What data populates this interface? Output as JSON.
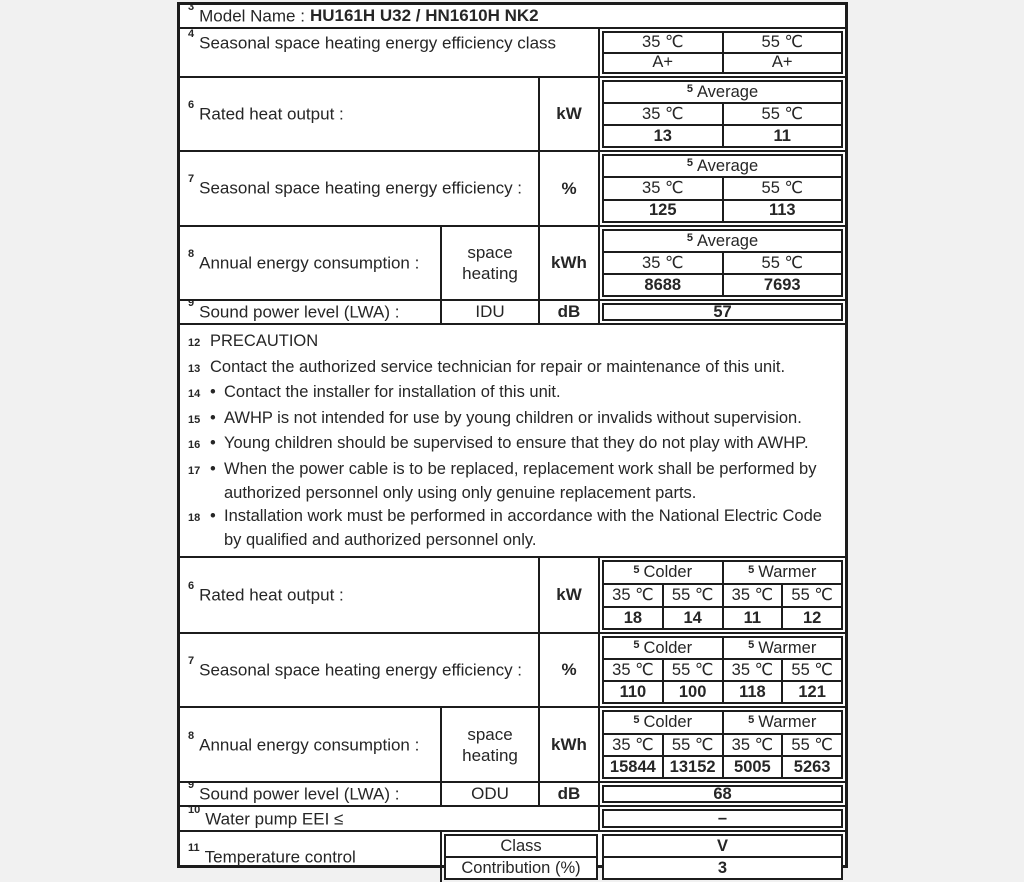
{
  "colors": {
    "line": "#1c1c1c",
    "text": "#262626",
    "page_bg": "#f1f1f1",
    "table_bg": "#ffffff"
  },
  "table": {
    "model": {
      "sup": "3",
      "label": "Model Name :",
      "value": "HU161H U32 / HN1610H NK2"
    },
    "eff_class": {
      "sup": "4",
      "label": "Seasonal space heating energy efficiency class",
      "cols": [
        "35 ℃",
        "55 ℃"
      ],
      "values": [
        "A+",
        "A+"
      ]
    },
    "rated_avg": {
      "sup": "6",
      "label": "Rated heat output :",
      "unit": "kW",
      "group_sup": "5",
      "group": "Average",
      "cols": [
        "35 ℃",
        "55 ℃"
      ],
      "values": [
        "13",
        "11"
      ]
    },
    "seff_avg": {
      "sup": "7",
      "label": "Seasonal space heating energy efficiency :",
      "unit": "%",
      "group_sup": "5",
      "group": "Average",
      "cols": [
        "35 ℃",
        "55 ℃"
      ],
      "values": [
        "125",
        "113"
      ]
    },
    "aec_avg": {
      "sup": "8",
      "label": "Annual energy consumption :",
      "sub": "space\nheating",
      "unit": "kWh",
      "group_sup": "5",
      "group": "Average",
      "cols": [
        "35 ℃",
        "55 ℃"
      ],
      "values": [
        "8688",
        "7693"
      ]
    },
    "sound_idu": {
      "sup": "9",
      "label": "Sound power level (LWA) :",
      "sub": "IDU",
      "unit": "dB",
      "value": "57"
    },
    "precaution": {
      "items": [
        {
          "sup": "12",
          "bullet": "",
          "text": "PRECAUTION"
        },
        {
          "sup": "13",
          "bullet": "",
          "text": "Contact the authorized service technician for repair or maintenance of this unit."
        },
        {
          "sup": "14",
          "bullet": "•",
          "text": "Contact the installer for installation of this unit."
        },
        {
          "sup": "15",
          "bullet": "•",
          "text": "AWHP is not intended for use by young children or invalids without supervision."
        },
        {
          "sup": "16",
          "bullet": "•",
          "text": "Young children should be supervised to ensure that they do not play with AWHP."
        },
        {
          "sup": "17",
          "bullet": "•",
          "text": "When the power cable is to be replaced, replacement work shall be performed by\nauthorized personnel only using only genuine replacement parts."
        },
        {
          "sup": "18",
          "bullet": "•",
          "text": "Installation work must be performed in accordance with the National Electric Code\nby qualified and authorized personnel only."
        }
      ]
    },
    "rated_cw": {
      "sup": "6",
      "label": "Rated heat output :",
      "unit": "kW",
      "groups": [
        {
          "sup": "5",
          "label": "Colder"
        },
        {
          "sup": "5",
          "label": "Warmer"
        }
      ],
      "cols": [
        "35 ℃",
        "55 ℃",
        "35 ℃",
        "55 ℃"
      ],
      "values": [
        "18",
        "14",
        "11",
        "12"
      ]
    },
    "seff_cw": {
      "sup": "7",
      "label": "Seasonal space heating energy efficiency :",
      "unit": "%",
      "groups": [
        {
          "sup": "5",
          "label": "Colder"
        },
        {
          "sup": "5",
          "label": "Warmer"
        }
      ],
      "cols": [
        "35 ℃",
        "55 ℃",
        "35 ℃",
        "55 ℃"
      ],
      "values": [
        "110",
        "100",
        "118",
        "121"
      ]
    },
    "aec_cw": {
      "sup": "8",
      "label": "Annual energy consumption :",
      "sub": "space\nheating",
      "unit": "kWh",
      "groups": [
        {
          "sup": "5",
          "label": "Colder"
        },
        {
          "sup": "5",
          "label": "Warmer"
        }
      ],
      "cols": [
        "35 ℃",
        "55 ℃",
        "35 ℃",
        "55 ℃"
      ],
      "values": [
        "15844",
        "13152",
        "5005",
        "5263"
      ]
    },
    "sound_odu": {
      "sup": "9",
      "label": "Sound power level (LWA) :",
      "sub": "ODU",
      "unit": "dB",
      "value": "68"
    },
    "water_pump": {
      "sup": "10",
      "label": "Water pump EEI ≤",
      "value": "–"
    },
    "temp_control": {
      "sup": "11",
      "label": "Temperature control",
      "rows": [
        {
          "label": "Class",
          "value": "V"
        },
        {
          "label": "Contribution (%)",
          "value": "3"
        }
      ]
    }
  }
}
